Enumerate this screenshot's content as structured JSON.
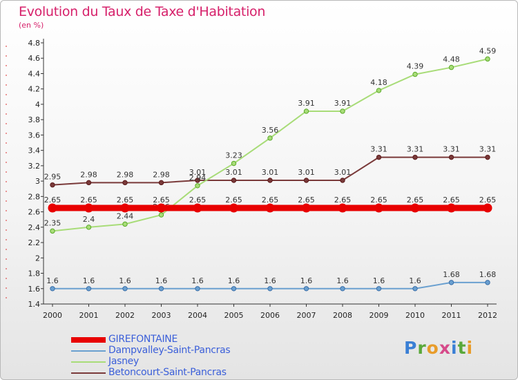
{
  "title": "Evolution du Taux de Taxe d'Habitation",
  "subtitle": "(en %)",
  "logo": {
    "text": "Proxiti",
    "colors": [
      "#3a7fd5",
      "#5aa83a",
      "#e89c2a",
      "#d64a8a",
      "#3a7fd5",
      "#5aa83a",
      "#e89c2a"
    ]
  },
  "chart_data": {
    "type": "line",
    "x": [
      "2000",
      "2001",
      "2002",
      "2003",
      "2004",
      "2005",
      "2006",
      "2007",
      "2008",
      "2009",
      "2010",
      "2011",
      "2012"
    ],
    "ylim": [
      1.4,
      4.8
    ],
    "yticks": [
      "1.4",
      "1.6",
      "1.8",
      "2",
      "2.2",
      "2.4",
      "2.6",
      "2.8",
      "3",
      "3.2",
      "3.4",
      "3.6",
      "3.8",
      "4",
      "4.2",
      "4.4",
      "4.6",
      "4.8"
    ],
    "grid": false,
    "legend": "bottom-left",
    "series": [
      {
        "name": "GIREFONTAINE",
        "color": "#e80000",
        "values": [
          2.65,
          2.65,
          2.65,
          2.65,
          2.65,
          2.65,
          2.65,
          2.65,
          2.65,
          2.65,
          2.65,
          2.65,
          2.65
        ],
        "labels": [
          "2.65",
          "2.65",
          "2.65",
          "2.65",
          "2.65",
          "2.65",
          "2.65",
          "2.65",
          "2.65",
          "2.65",
          "2.65",
          "2.65",
          "2.65"
        ]
      },
      {
        "name": "Dampvalley-Saint-Pancras",
        "color": "#6aa0d0",
        "values": [
          1.6,
          1.6,
          1.6,
          1.6,
          1.6,
          1.6,
          1.6,
          1.6,
          1.6,
          1.6,
          1.6,
          1.68,
          1.68
        ],
        "labels": [
          "1.6",
          "1.6",
          "1.6",
          "1.6",
          "1.6",
          "1.6",
          "1.6",
          "1.6",
          "1.6",
          "1.6",
          "1.6",
          "1.68",
          "1.68"
        ]
      },
      {
        "name": "Jasney",
        "color": "#a8dc78",
        "values": [
          2.35,
          2.4,
          2.44,
          2.56,
          2.94,
          3.23,
          3.56,
          3.91,
          3.91,
          4.18,
          4.39,
          4.48,
          4.59
        ],
        "labels": [
          "2.35",
          "2.4",
          "2.44",
          "2.56",
          "2.94",
          "3.23",
          "3.56",
          "3.91",
          "3.91",
          "4.18",
          "4.39",
          "4.48",
          "4.59"
        ]
      },
      {
        "name": "Betoncourt-Saint-Pancras",
        "color": "#7a3a3a",
        "values": [
          2.95,
          2.98,
          2.98,
          2.98,
          3.01,
          3.01,
          3.01,
          3.01,
          3.01,
          3.31,
          3.31,
          3.31,
          3.31
        ],
        "labels": [
          "2.95",
          "2.98",
          "2.98",
          "2.98",
          "3.01",
          "3.01",
          "3.01",
          "3.01",
          "3.01",
          "3.31",
          "3.31",
          "3.31",
          "3.31"
        ]
      }
    ]
  }
}
